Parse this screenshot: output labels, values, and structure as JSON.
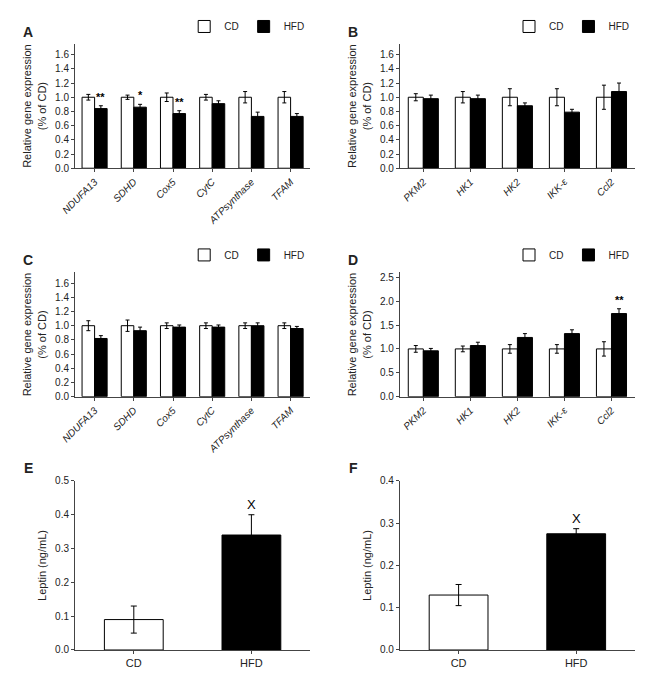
{
  "chart_data": [
    {
      "type": "bar",
      "title": "A",
      "categories": [
        "NDUFA13",
        "SDHD",
        "Cox5",
        "CytC",
        "ATPsynthase",
        "TFAM"
      ],
      "series": [
        {
          "name": "CD",
          "color": "white",
          "values": [
            1.0,
            1.0,
            1.0,
            1.0,
            1.0,
            1.0
          ],
          "errors": [
            0.04,
            0.03,
            0.06,
            0.04,
            0.08,
            0.08
          ]
        },
        {
          "name": "HFD",
          "color": "black",
          "values": [
            0.84,
            0.86,
            0.77,
            0.91,
            0.73,
            0.73
          ],
          "errors": [
            0.04,
            0.04,
            0.04,
            0.04,
            0.06,
            0.04
          ]
        }
      ],
      "annotations": [
        {
          "text": "**",
          "x": "NDUFA13",
          "series": "HFD"
        },
        {
          "text": "*",
          "x": "SDHD",
          "series": "HFD"
        },
        {
          "text": "**",
          "x": "Cox5",
          "series": "HFD"
        }
      ],
      "ylabel": "Relative gene expression\n(% of CD)",
      "ylim": [
        0,
        1.75
      ],
      "yticks": [
        {
          "value": 0,
          "label": "0.0"
        },
        0.2,
        0.4,
        0.6,
        0.8,
        {
          "value": 1,
          "label": "1.0"
        },
        1.2,
        1.4,
        1.6
      ],
      "legend": "upper right",
      "grid": false
    },
    {
      "type": "bar",
      "title": "B",
      "categories": [
        "PKM2",
        "HK1",
        "HK2",
        "IKK-ε",
        "Ccl2"
      ],
      "series": [
        {
          "name": "CD",
          "color": "white",
          "values": [
            1.0,
            1.0,
            1.0,
            1.0,
            1.0
          ],
          "errors": [
            0.05,
            0.08,
            0.12,
            0.12,
            0.17
          ]
        },
        {
          "name": "HFD",
          "color": "black",
          "values": [
            0.98,
            0.98,
            0.88,
            0.79,
            1.08
          ],
          "errors": [
            0.05,
            0.05,
            0.04,
            0.04,
            0.12
          ]
        }
      ],
      "ylabel": "Relative gene expression\n(% of CD)",
      "ylim": [
        0,
        1.75
      ],
      "yticks": [
        {
          "value": 0,
          "label": "0.0"
        },
        0.2,
        0.4,
        0.6,
        0.8,
        {
          "value": 1,
          "label": "1.0"
        },
        1.2,
        1.4,
        1.6
      ],
      "legend": "upper right",
      "grid": false
    },
    {
      "type": "bar",
      "title": "C",
      "categories": [
        "NDUFA13",
        "SDHD",
        "Cox5",
        "CytC",
        "ATPsynthase",
        "TFAM"
      ],
      "series": [
        {
          "name": "CD",
          "color": "white",
          "values": [
            1.0,
            1.0,
            1.0,
            1.0,
            1.0,
            1.0
          ],
          "errors": [
            0.07,
            0.08,
            0.04,
            0.04,
            0.04,
            0.04
          ]
        },
        {
          "name": "HFD",
          "color": "black",
          "values": [
            0.82,
            0.93,
            0.98,
            0.98,
            1.0,
            0.96
          ],
          "errors": [
            0.04,
            0.05,
            0.03,
            0.03,
            0.04,
            0.03
          ]
        }
      ],
      "ylabel": "Relative gene expression\n(% of CD)",
      "ylim": [
        0,
        1.75
      ],
      "yticks": [
        {
          "value": 0,
          "label": "0.0"
        },
        0.2,
        0.4,
        0.6,
        0.8,
        {
          "value": 1,
          "label": "1.0"
        },
        1.2,
        1.4,
        1.6
      ],
      "legend": "upper right",
      "grid": false
    },
    {
      "type": "bar",
      "title": "D",
      "categories": [
        "PKM2",
        "HK1",
        "HK2",
        "IKK-ε",
        "Ccl2"
      ],
      "series": [
        {
          "name": "CD",
          "color": "white",
          "values": [
            1.0,
            1.0,
            1.0,
            1.0,
            1.0
          ],
          "errors": [
            0.07,
            0.06,
            0.09,
            0.09,
            0.15
          ]
        },
        {
          "name": "HFD",
          "color": "black",
          "values": [
            0.96,
            1.07,
            1.24,
            1.32,
            1.74
          ],
          "errors": [
            0.05,
            0.07,
            0.08,
            0.08,
            0.1
          ]
        }
      ],
      "annotations": [
        {
          "text": "**",
          "x": "Ccl2",
          "series": "HFD"
        }
      ],
      "ylabel": "Relative gene expression\n(% of CD)",
      "ylim": [
        0,
        2.6
      ],
      "yticks": [
        {
          "value": 0,
          "label": "0.0"
        },
        0.5,
        {
          "value": 1,
          "label": "1.0"
        },
        1.5,
        {
          "value": 2,
          "label": "2.0"
        },
        2.5
      ],
      "legend": "upper right",
      "grid": false
    },
    {
      "type": "bar",
      "title": "E",
      "categories": [
        "CD",
        "HFD"
      ],
      "values": [
        0.09,
        0.34
      ],
      "errors": [
        0.04,
        0.06
      ],
      "colors": [
        "white",
        "black"
      ],
      "annotations": [
        {
          "text": "X",
          "x": "HFD"
        }
      ],
      "ylabel": "Leptin (ng/mL)",
      "ylim": [
        0,
        0.5
      ],
      "yticks": [
        {
          "value": 0,
          "label": "0.0"
        },
        0.1,
        0.2,
        0.3,
        0.4,
        0.5
      ],
      "grid": false
    },
    {
      "type": "bar",
      "title": "F",
      "categories": [
        "CD",
        "HFD"
      ],
      "values": [
        0.13,
        0.275
      ],
      "errors": [
        0.025,
        0.012
      ],
      "colors": [
        "white",
        "black"
      ],
      "annotations": [
        {
          "text": "X",
          "x": "HFD"
        }
      ],
      "ylabel": "Leptin (ng/mL)",
      "ylim": [
        0,
        0.4
      ],
      "yticks": [
        {
          "value": 0,
          "label": "0.0"
        },
        0.1,
        0.2,
        0.3,
        0.4
      ],
      "grid": false
    }
  ]
}
